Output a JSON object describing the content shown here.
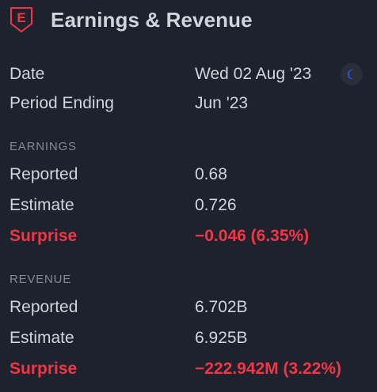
{
  "header": {
    "badge_letter": "E",
    "badge_icon": "earnings-shield-icon",
    "title": "Earnings & Revenue"
  },
  "info": {
    "date_label": "Date",
    "date_value": "Wed 02 Aug '23",
    "date_icon": "moon-icon",
    "period_label": "Period Ending",
    "period_value": "Jun '23"
  },
  "earnings": {
    "section_title": "EARNINGS",
    "reported_label": "Reported",
    "reported_value": "0.68",
    "estimate_label": "Estimate",
    "estimate_value": "0.726",
    "surprise_label": "Surprise",
    "surprise_value": "−0.046 (6.35%)"
  },
  "revenue": {
    "section_title": "REVENUE",
    "reported_label": "Reported",
    "reported_value": "6.702B",
    "estimate_label": "Estimate",
    "estimate_value": "6.925B",
    "surprise_label": "Surprise",
    "surprise_value": "−222.942M (3.22%)"
  },
  "colors": {
    "background": "#1e222d",
    "text": "#d1d4dc",
    "muted": "#868993",
    "negative": "#f23645",
    "moon": "#2962ff"
  }
}
